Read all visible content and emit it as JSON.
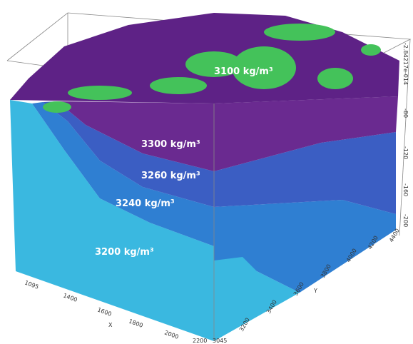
{
  "layers": [
    {
      "label": "3100 kg/m³"
    },
    {
      "label": "3300 kg/m³"
    },
    {
      "label": "3260 kg/m³"
    },
    {
      "label": "3240 kg/m³"
    },
    {
      "label": "3200 kg/m³"
    }
  ],
  "x_axis": {
    "title": "X",
    "ticks": [
      "1095",
      "1400",
      "1600",
      "1800",
      "2000",
      "2200"
    ]
  },
  "y_axis": {
    "title": "Y",
    "ticks": [
      "3045",
      "3200",
      "3400",
      "3600",
      "3800",
      "4000",
      "4200",
      "4400"
    ]
  },
  "z_axis": {
    "ticks": [
      "-2.84217e-014",
      "-80",
      "-120",
      "-160",
      "-200"
    ]
  }
}
